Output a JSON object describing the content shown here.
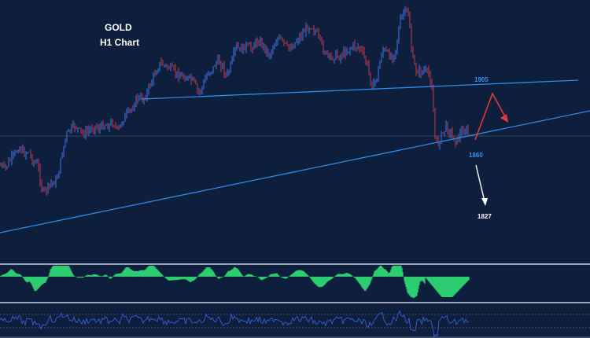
{
  "chart_data": {
    "type": "candlestick",
    "title": "GOLD",
    "subtitle": "H1 Chart",
    "levels": [
      {
        "label": "1905",
        "color": "#3d8fe8"
      },
      {
        "label": "1860",
        "color": "#3d8fe8"
      },
      {
        "label": "1827",
        "color": "#ffffff"
      }
    ],
    "colors": {
      "background": "#0d1f3c",
      "up_candle": "#3d6fd9",
      "down_candle": "#b03a4a",
      "trendline": "#2f8ae8",
      "histogram": "#2ecc71",
      "oscillator": "#3a5fd8",
      "arrow_up": "#e53935",
      "arrow_down": "#ffffff"
    },
    "path": [
      [
        0,
        210
      ],
      [
        6,
        215
      ],
      [
        12,
        205
      ],
      [
        18,
        198
      ],
      [
        24,
        186
      ],
      [
        30,
        195
      ],
      [
        36,
        192
      ],
      [
        42,
        205
      ],
      [
        48,
        210
      ],
      [
        54,
        245
      ],
      [
        60,
        240
      ],
      [
        66,
        232
      ],
      [
        72,
        230
      ],
      [
        78,
        200
      ],
      [
        84,
        172
      ],
      [
        90,
        165
      ],
      [
        96,
        160
      ],
      [
        102,
        168
      ],
      [
        108,
        170
      ],
      [
        114,
        165
      ],
      [
        120,
        160
      ],
      [
        126,
        164
      ],
      [
        132,
        158
      ],
      [
        138,
        160
      ],
      [
        144,
        155
      ],
      [
        150,
        168
      ],
      [
        156,
        152
      ],
      [
        162,
        145
      ],
      [
        168,
        138
      ],
      [
        174,
        124
      ],
      [
        180,
        127
      ],
      [
        186,
        120
      ],
      [
        192,
        105
      ],
      [
        198,
        90
      ],
      [
        204,
        80
      ],
      [
        210,
        84
      ],
      [
        216,
        87
      ],
      [
        222,
        92
      ],
      [
        228,
        96
      ],
      [
        234,
        98
      ],
      [
        240,
        100
      ],
      [
        246,
        104
      ],
      [
        252,
        118
      ],
      [
        258,
        110
      ],
      [
        264,
        92
      ],
      [
        270,
        88
      ],
      [
        276,
        78
      ],
      [
        282,
        82
      ],
      [
        288,
        98
      ],
      [
        294,
        82
      ],
      [
        300,
        60
      ],
      [
        306,
        64
      ],
      [
        312,
        58
      ],
      [
        318,
        62
      ],
      [
        324,
        55
      ],
      [
        330,
        52
      ],
      [
        336,
        60
      ],
      [
        342,
        70
      ],
      [
        348,
        58
      ],
      [
        354,
        48
      ],
      [
        360,
        55
      ],
      [
        366,
        62
      ],
      [
        372,
        58
      ],
      [
        378,
        50
      ],
      [
        384,
        44
      ],
      [
        390,
        35
      ],
      [
        396,
        32
      ],
      [
        402,
        42
      ],
      [
        408,
        56
      ],
      [
        414,
        68
      ],
      [
        420,
        75
      ],
      [
        426,
        70
      ],
      [
        432,
        72
      ],
      [
        438,
        66
      ],
      [
        444,
        62
      ],
      [
        450,
        58
      ],
      [
        456,
        60
      ],
      [
        462,
        70
      ],
      [
        468,
        88
      ],
      [
        474,
        112
      ],
      [
        480,
        95
      ],
      [
        486,
        62
      ],
      [
        492,
        68
      ],
      [
        498,
        72
      ],
      [
        504,
        60
      ],
      [
        508,
        30
      ],
      [
        512,
        18
      ],
      [
        516,
        14
      ],
      [
        520,
        20
      ],
      [
        524,
        75
      ],
      [
        528,
        88
      ],
      [
        534,
        92
      ],
      [
        540,
        90
      ],
      [
        546,
        96
      ],
      [
        550,
        115
      ],
      [
        552,
        170
      ],
      [
        556,
        185
      ],
      [
        562,
        170
      ],
      [
        568,
        160
      ],
      [
        574,
        172
      ],
      [
        580,
        180
      ],
      [
        586,
        168
      ],
      [
        592,
        165
      ],
      [
        596,
        172
      ]
    ]
  }
}
